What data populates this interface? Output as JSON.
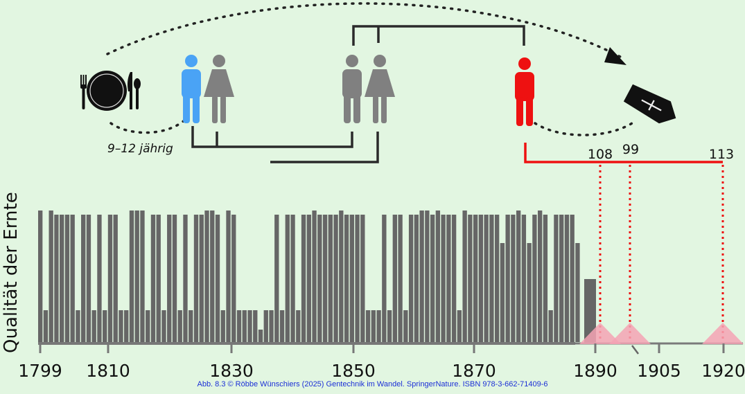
{
  "diagram": {
    "age_note": "9–12 jährig",
    "ylabel": "Qualität der Ernte",
    "lifespans": [
      "108",
      "99",
      "113"
    ],
    "colors": {
      "boy": "#4aa3f5",
      "descendant": "#ee1111",
      "ancestor": "#808080",
      "bar": "#666666",
      "background": "#e2f6e1"
    },
    "icons": [
      "plate-icon",
      "fork-icon",
      "knife-icon",
      "spoon-icon",
      "boy-icon",
      "woman-icon",
      "man-icon",
      "grandson-icon",
      "coffin-icon",
      "cross-icon",
      "arrow-head-icon"
    ]
  },
  "chart_data": {
    "type": "bar",
    "x_ticks": [
      "1799",
      "1810",
      "1830",
      "1850",
      "1870",
      "1890",
      "1905",
      "1920"
    ],
    "levels": [
      4,
      1,
      4,
      3,
      3,
      3,
      3,
      1,
      3,
      3,
      1,
      3,
      1,
      3,
      3,
      1,
      1,
      4,
      4,
      4,
      1,
      3,
      3,
      1,
      3,
      3,
      1,
      3,
      1,
      3,
      3,
      4,
      4,
      3,
      1,
      4,
      3,
      1,
      1,
      1,
      1,
      0,
      1,
      1,
      3,
      1,
      3,
      3,
      1,
      3,
      3,
      4,
      3,
      3,
      3,
      3,
      4,
      3,
      3,
      3,
      3,
      1,
      1,
      1,
      3,
      1,
      3,
      3,
      1,
      3,
      3,
      4,
      4,
      3,
      4,
      3,
      3,
      3,
      1,
      4,
      3,
      3,
      3,
      3,
      3,
      3,
      2,
      3,
      3,
      4,
      3,
      2,
      3,
      4,
      3,
      1,
      3,
      3,
      3,
      3,
      2
    ],
    "level_note": "harvest quality per year 1799–1899, ordinal 0 (lowest) to 4 (highest)"
  }
}
